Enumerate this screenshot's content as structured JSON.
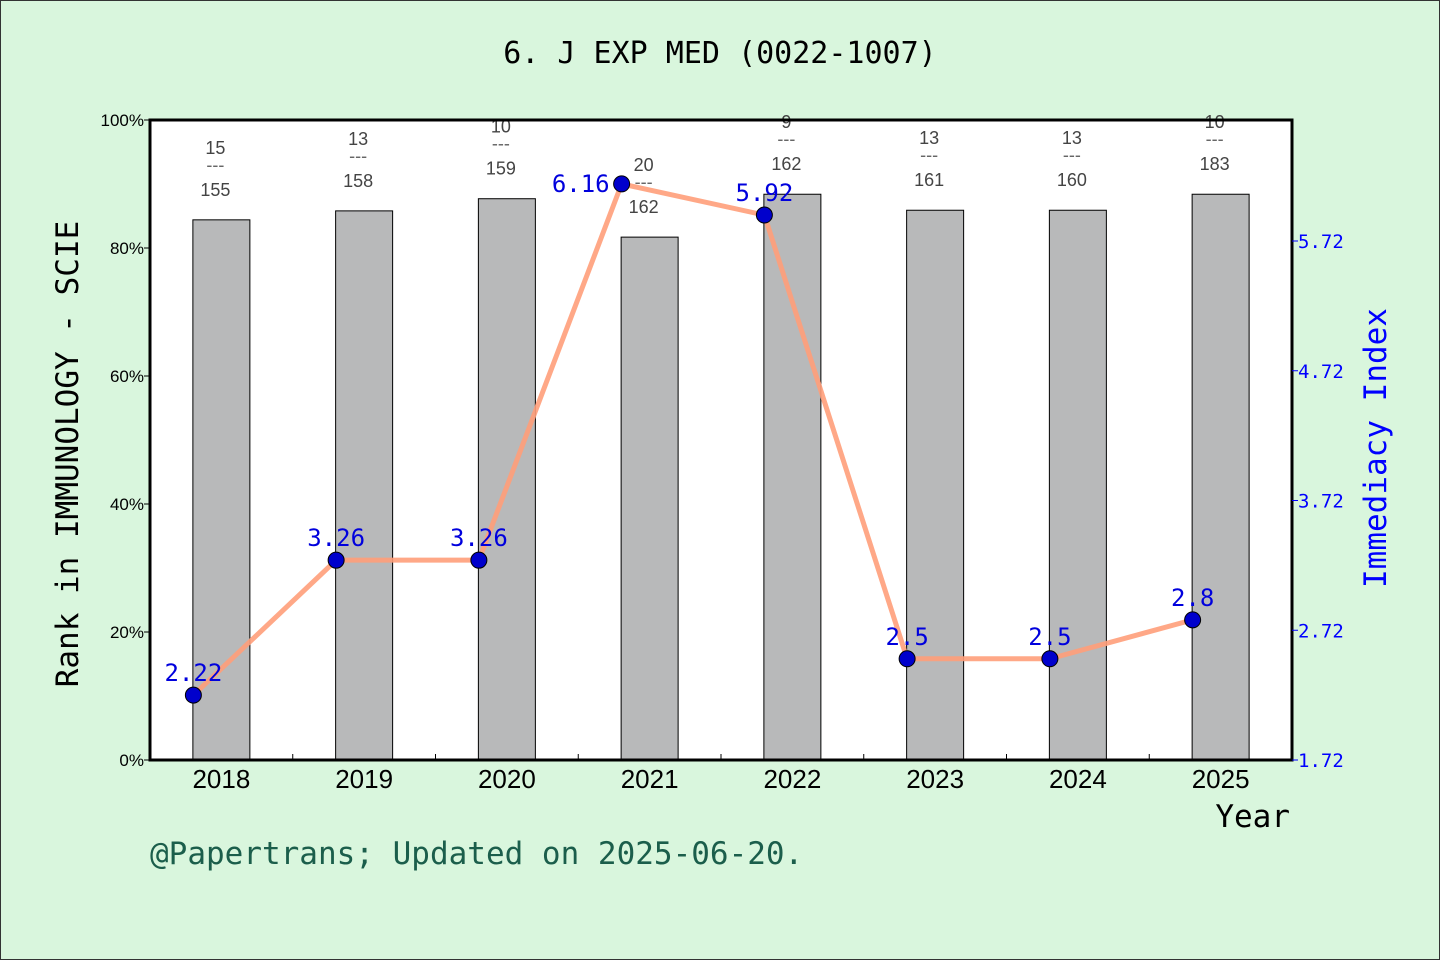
{
  "title": "6. J EXP MED (0022-1007)",
  "footer": "@Papertrans; Updated on 2025-06-20.",
  "chart_data": {
    "type": "bar+line",
    "categories": [
      "2018",
      "2019",
      "2020",
      "2021",
      "2022",
      "2023",
      "2024",
      "2025"
    ],
    "xlabel": "Year",
    "ylabel": "Rank in IMMUNOLOGY - SCIE",
    "ylabel_right": "Immediacy Index",
    "ylim": [
      0,
      100
    ],
    "yticks": [
      "0%",
      "20%",
      "40%",
      "60%",
      "80%",
      "100%"
    ],
    "ylim_right": [
      1.72,
      6.65
    ],
    "yticks_right": [
      "1.72",
      "2.72",
      "3.72",
      "4.72",
      "5.72"
    ],
    "bars": {
      "values": [
        84.4,
        85.8,
        87.7,
        81.7,
        88.4,
        85.9,
        85.9,
        88.4
      ],
      "rank": [
        "15",
        "13",
        "10",
        "20",
        "9",
        "13",
        "13",
        "10"
      ],
      "total": [
        "155",
        "158",
        "159",
        "162",
        "162",
        "161",
        "160",
        "183"
      ],
      "color": "#b8b9ba"
    },
    "line": {
      "values": [
        2.22,
        3.26,
        3.26,
        6.16,
        5.92,
        2.5,
        2.5,
        2.8
      ],
      "labels": [
        "2.22",
        "3.26",
        "3.26",
        "6.16",
        "5.92",
        "2.5",
        "2.5",
        "2.8"
      ],
      "color": "#ff9e7a",
      "marker_color": "#0000cc"
    },
    "grid": false
  }
}
